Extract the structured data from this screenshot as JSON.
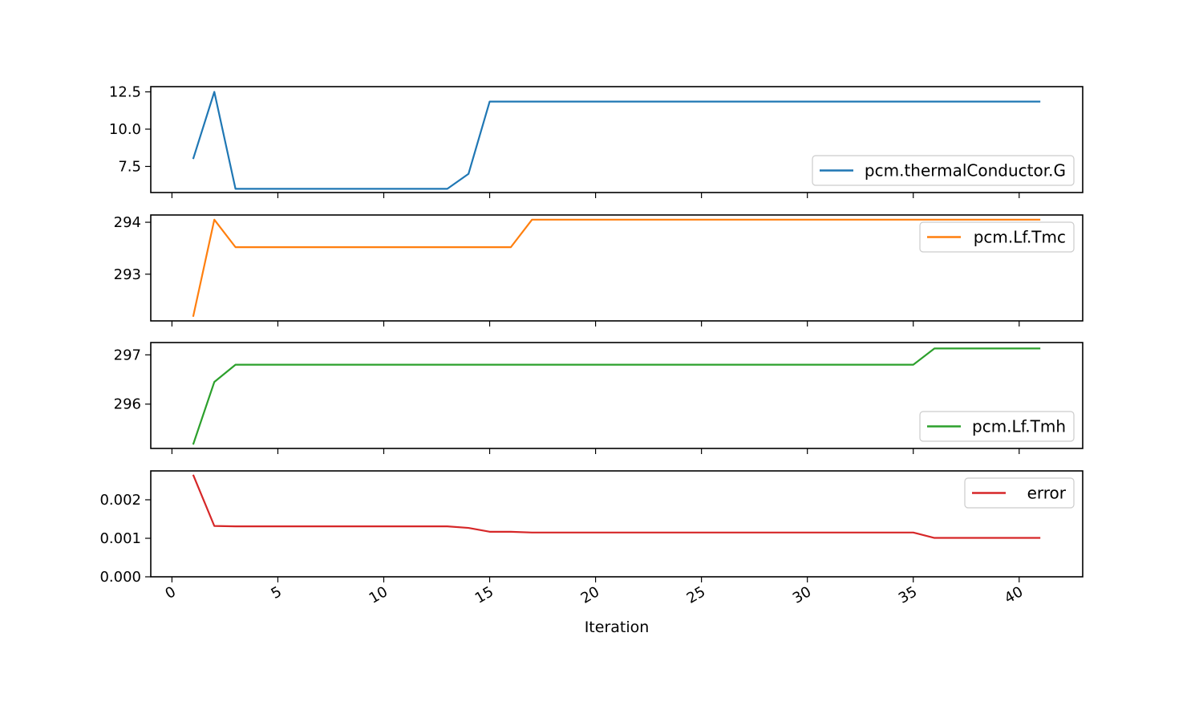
{
  "chart_data": {
    "type": "line",
    "xlabel": "Iteration",
    "x_ticks": [
      0,
      5,
      10,
      15,
      20,
      25,
      30,
      35,
      40
    ],
    "xlim": [
      -1,
      43
    ],
    "x": [
      1,
      2,
      3,
      4,
      5,
      6,
      7,
      8,
      9,
      10,
      11,
      12,
      13,
      14,
      15,
      16,
      17,
      18,
      19,
      20,
      21,
      22,
      23,
      24,
      25,
      26,
      27,
      28,
      29,
      30,
      31,
      32,
      33,
      34,
      35,
      36,
      37,
      38,
      39,
      40,
      41
    ],
    "panels": [
      {
        "series": {
          "name": "pcm.thermalConductor.G",
          "color": "#1f77b4",
          "values": [
            8.0,
            12.5,
            6.0,
            6.0,
            6.0,
            6.0,
            6.0,
            6.0,
            6.0,
            6.0,
            6.0,
            6.0,
            6.0,
            7.0,
            11.85,
            11.85,
            11.85,
            11.85,
            11.85,
            11.85,
            11.85,
            11.85,
            11.85,
            11.85,
            11.85,
            11.85,
            11.85,
            11.85,
            11.85,
            11.85,
            11.85,
            11.85,
            11.85,
            11.85,
            11.85,
            11.85,
            11.85,
            11.85,
            11.85,
            11.85,
            11.85
          ]
        },
        "ylim": [
          5.75,
          12.85
        ],
        "y_ticks": [
          "7.5",
          "10.0",
          "12.5"
        ],
        "legend": "bottom-right"
      },
      {
        "series": {
          "name": "pcm.Lf.Tmc",
          "color": "#ff7f0e",
          "values": [
            292.18,
            294.05,
            293.52,
            293.52,
            293.52,
            293.52,
            293.52,
            293.52,
            293.52,
            293.52,
            293.52,
            293.52,
            293.52,
            293.52,
            293.52,
            293.52,
            294.05,
            294.05,
            294.05,
            294.05,
            294.05,
            294.05,
            294.05,
            294.05,
            294.05,
            294.05,
            294.05,
            294.05,
            294.05,
            294.05,
            294.05,
            294.05,
            294.05,
            294.05,
            294.05,
            294.05,
            294.05,
            294.05,
            294.05,
            294.05,
            294.05
          ]
        },
        "ylim": [
          292.1,
          294.14
        ],
        "y_ticks": [
          "293",
          "294"
        ],
        "legend": "top-right"
      },
      {
        "series": {
          "name": "pcm.Lf.Tmh",
          "color": "#2ca02c",
          "values": [
            295.18,
            296.45,
            296.8,
            296.8,
            296.8,
            296.8,
            296.8,
            296.8,
            296.8,
            296.8,
            296.8,
            296.8,
            296.8,
            296.8,
            296.8,
            296.8,
            296.8,
            296.8,
            296.8,
            296.8,
            296.8,
            296.8,
            296.8,
            296.8,
            296.8,
            296.8,
            296.8,
            296.8,
            296.8,
            296.8,
            296.8,
            296.8,
            296.8,
            296.8,
            296.8,
            297.13,
            297.13,
            297.13,
            297.13,
            297.13,
            297.13
          ]
        },
        "ylim": [
          295.1,
          297.25
        ],
        "y_ticks": [
          "296",
          "297"
        ],
        "legend": "bottom-right"
      },
      {
        "series": {
          "name": "error",
          "color": "#d62728",
          "values": [
            0.00265,
            0.00132,
            0.00131,
            0.00131,
            0.00131,
            0.00131,
            0.00131,
            0.00131,
            0.00131,
            0.00131,
            0.00131,
            0.00131,
            0.00131,
            0.00127,
            0.00117,
            0.00117,
            0.00115,
            0.00115,
            0.00115,
            0.00115,
            0.00115,
            0.00115,
            0.00115,
            0.00115,
            0.00115,
            0.00115,
            0.00115,
            0.00115,
            0.00115,
            0.00115,
            0.00115,
            0.00115,
            0.00115,
            0.00115,
            0.00115,
            0.00101,
            0.00101,
            0.00101,
            0.00101,
            0.00101,
            0.00101
          ]
        },
        "ylim": [
          0,
          0.00275
        ],
        "y_ticks": [
          "0.000",
          "0.001",
          "0.002"
        ],
        "legend": "top-right"
      }
    ],
    "grid": false
  }
}
